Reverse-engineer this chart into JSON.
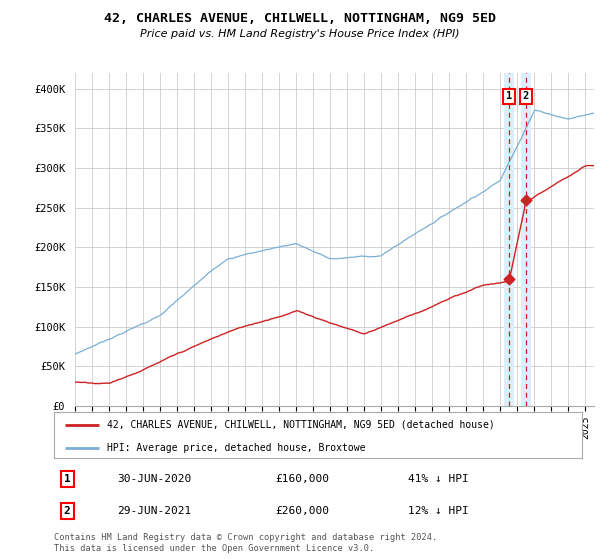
{
  "title": "42, CHARLES AVENUE, CHILWELL, NOTTINGHAM, NG9 5ED",
  "subtitle": "Price paid vs. HM Land Registry's House Price Index (HPI)",
  "legend_line1": "42, CHARLES AVENUE, CHILWELL, NOTTINGHAM, NG9 5ED (detached house)",
  "legend_line2": "HPI: Average price, detached house, Broxtowe",
  "transaction1_date": "30-JUN-2020",
  "transaction1_price": "£160,000",
  "transaction1_hpi": "41% ↓ HPI",
  "transaction2_date": "29-JUN-2021",
  "transaction2_price": "£260,000",
  "transaction2_hpi": "12% ↓ HPI",
  "footnote": "Contains HM Land Registry data © Crown copyright and database right 2024.\nThis data is licensed under the Open Government Licence v3.0.",
  "hpi_color": "#7bafd4",
  "price_color": "#cc2222",
  "hpi_band_color": "#ddeeff",
  "ylim_min": 0,
  "ylim_max": 420000,
  "yticks": [
    0,
    50000,
    100000,
    150000,
    200000,
    250000,
    300000,
    350000,
    400000
  ],
  "ytick_labels": [
    "£0",
    "£50K",
    "£100K",
    "£150K",
    "£200K",
    "£250K",
    "£300K",
    "£350K",
    "£400K"
  ],
  "background_color": "#ffffff",
  "grid_color": "#cccccc",
  "t1_year": 2020.5,
  "t2_year": 2021.5,
  "t1_price": 160000,
  "t2_price": 260000
}
